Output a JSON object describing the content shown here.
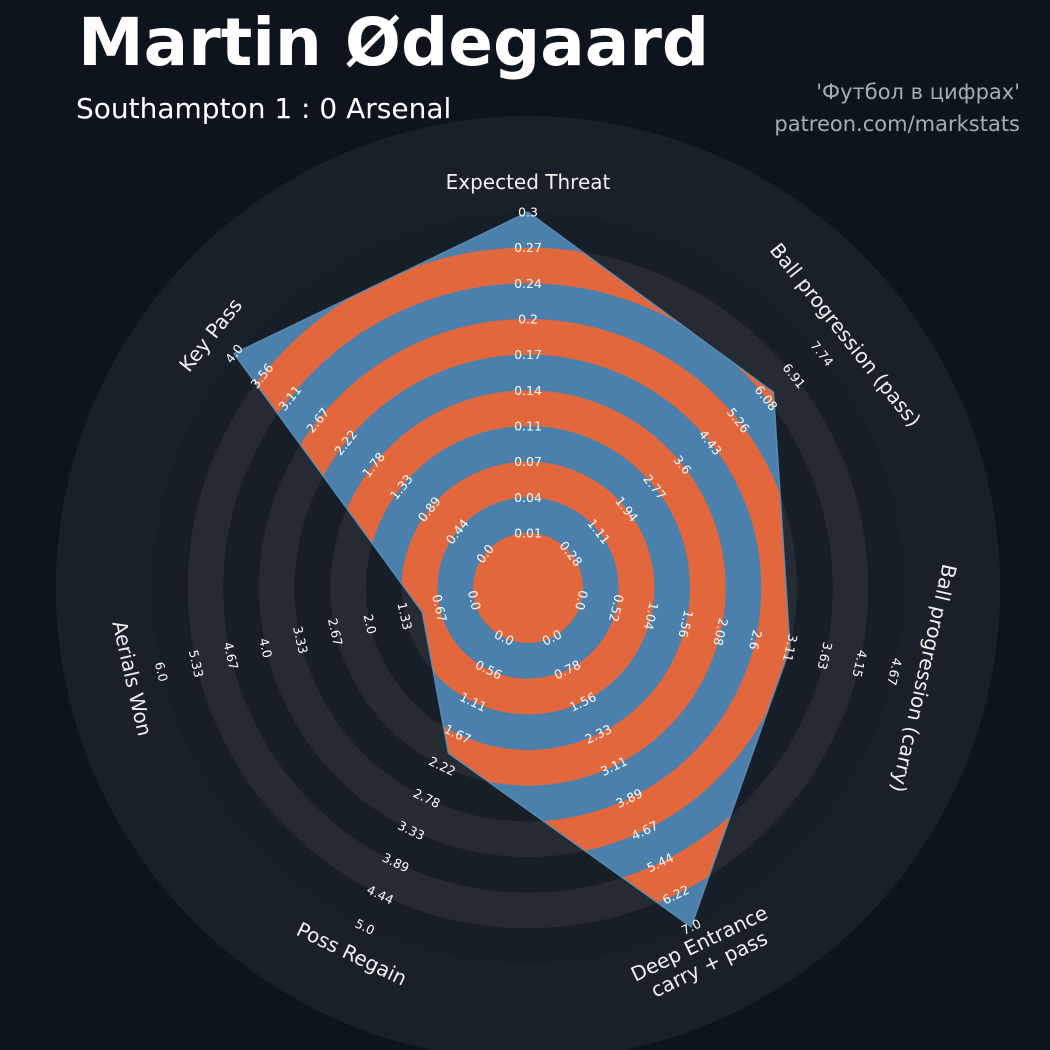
{
  "header": {
    "title": "Martin Ødegaard",
    "subtitle": "Southampton 1 : 0 Arsenal",
    "credit_line1": "'Футбол в цифрах'",
    "credit_line2": "patreon.com/markstats"
  },
  "chart_data": {
    "type": "radar",
    "title": "Martin Ødegaard",
    "subtitle": "Southampton 1 : 0 Arsenal",
    "center": [
      528,
      588
    ],
    "inner_radius": 55,
    "outer_radius": 376,
    "label_radius": 406,
    "num_rings": 9,
    "params": [
      {
        "label": "Expected Threat",
        "min": 0.01,
        "max": 0.3,
        "value": 0.3,
        "ticks": [
          "0.01",
          "0.04",
          "0.07",
          "0.11",
          "0.14",
          "0.17",
          "0.2",
          "0.24",
          "0.27",
          "0.3"
        ]
      },
      {
        "label": "Ball progression (pass)",
        "min": 0.28,
        "max": 7.74,
        "value": 6.3,
        "ticks": [
          "0.28",
          "1.11",
          "1.94",
          "2.77",
          "3.6",
          "4.43",
          "5.26",
          "6.08",
          "6.91",
          "7.74"
        ]
      },
      {
        "label": "Ball progression (carry)",
        "min": 0.0,
        "max": 4.67,
        "value": 3.11,
        "ticks": [
          "0.0",
          "0.52",
          "1.04",
          "1.56",
          "2.08",
          "2.6",
          "3.11",
          "3.63",
          "4.15",
          "4.67"
        ]
      },
      {
        "label": "Deep Entrance\ncarry + pass",
        "min": 0.0,
        "max": 7.0,
        "value": 7.0,
        "ticks": [
          "0.0",
          "0.78",
          "1.56",
          "2.33",
          "3.11",
          "3.89",
          "4.67",
          "5.44",
          "6.22",
          "7.0"
        ]
      },
      {
        "label": "Poss Regain",
        "min": 0.0,
        "max": 5.0,
        "value": 2.0,
        "ticks": [
          "0.0",
          "0.56",
          "1.11",
          "1.67",
          "2.22",
          "2.78",
          "3.33",
          "3.89",
          "4.44",
          "5.0"
        ]
      },
      {
        "label": "Aerials Won",
        "min": 0.0,
        "max": 6.0,
        "value": 1.0,
        "ticks": [
          "0.0",
          "0.67",
          "1.33",
          "2.0",
          "2.67",
          "3.33",
          "4.0",
          "4.67",
          "5.33",
          "6.0"
        ]
      },
      {
        "label": "Key Pass",
        "min": 0.0,
        "max": 4.0,
        "value": 4.0,
        "ticks": [
          "0.0",
          "0.44",
          "0.89",
          "1.33",
          "1.78",
          "2.22",
          "2.67",
          "3.11",
          "3.56",
          "4.0"
        ]
      }
    ],
    "colors": {
      "background": "#0e141d",
      "disc": "#1a202a",
      "ring_dark_a": "#262a33",
      "ring_dark_b": "#181e27",
      "ring_orange": "#e2673c",
      "radar_blue": "#4a80ab",
      "radar_edge": "#5c90b8",
      "tick_text": "#ffffff",
      "label_text": "#f0f0f0",
      "title_text": "#ffffff",
      "credit_text": "#a6adb4"
    }
  }
}
